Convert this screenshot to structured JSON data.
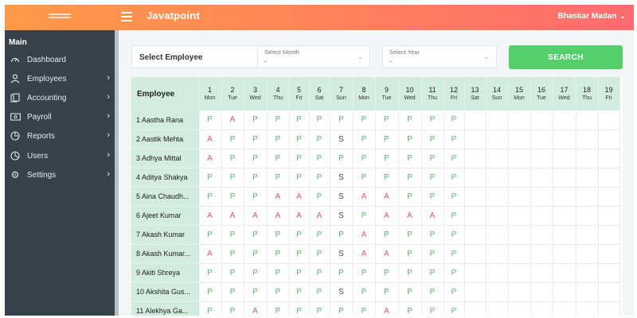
{
  "header": {
    "title": "Javatpoint",
    "user": "Bhaskar Madan"
  },
  "sidebar": {
    "section": "Main",
    "items": [
      {
        "label": "Dashboard",
        "icon": "dashboard-icon",
        "arrow": false
      },
      {
        "label": "Employees",
        "icon": "user-icon",
        "arrow": true
      },
      {
        "label": "Accounting",
        "icon": "accounting-icon",
        "arrow": true
      },
      {
        "label": "Payroll",
        "icon": "payroll-icon",
        "arrow": true
      },
      {
        "label": "Reports",
        "icon": "reports-icon",
        "arrow": true
      },
      {
        "label": "Users",
        "icon": "users-icon",
        "arrow": true
      },
      {
        "label": "Settings",
        "icon": "gear-icon",
        "arrow": true
      }
    ]
  },
  "filters": {
    "employee_label": "Select Employee",
    "month_caption": "Select Month",
    "month_value": "-",
    "year_caption": "Select Year",
    "year_value": "-",
    "search_label": "SEARCH"
  },
  "table": {
    "employee_header": "Employee",
    "days": [
      {
        "n": "1",
        "d": "Mon"
      },
      {
        "n": "2",
        "d": "Tue"
      },
      {
        "n": "3",
        "d": "Wed"
      },
      {
        "n": "4",
        "d": "Thu"
      },
      {
        "n": "5",
        "d": "Fri"
      },
      {
        "n": "6",
        "d": "Sat"
      },
      {
        "n": "7",
        "d": "Sun"
      },
      {
        "n": "8",
        "d": "Mon"
      },
      {
        "n": "9",
        "d": "Tue"
      },
      {
        "n": "10",
        "d": "Wed"
      },
      {
        "n": "11",
        "d": "Thu"
      },
      {
        "n": "12",
        "d": "Fri"
      },
      {
        "n": "13",
        "d": "Sat"
      },
      {
        "n": "14",
        "d": "Sun"
      },
      {
        "n": "15",
        "d": "Mon"
      },
      {
        "n": "16",
        "d": "Tue"
      },
      {
        "n": "17",
        "d": "Wed"
      },
      {
        "n": "18",
        "d": "Thu"
      },
      {
        "n": "19",
        "d": "Fri"
      }
    ],
    "rows": [
      {
        "name": "1 Aastha Rana",
        "marks": [
          "P",
          "A",
          "P",
          "P",
          "P",
          "P",
          "P",
          "P",
          "P",
          "P",
          "P",
          "P"
        ]
      },
      {
        "name": "2 Aastik Mehta",
        "marks": [
          "A",
          "P",
          "P",
          "P",
          "P",
          "P",
          "S",
          "P",
          "P",
          "P",
          "P",
          "P"
        ]
      },
      {
        "name": "3 Adhya Mittal",
        "marks": [
          "A",
          "P",
          "P",
          "P",
          "P",
          "P",
          "P",
          "P",
          "P",
          "P",
          "P",
          "P"
        ]
      },
      {
        "name": "4 Aditya Shakya",
        "marks": [
          "P",
          "P",
          "P",
          "P",
          "P",
          "P",
          "S",
          "P",
          "P",
          "P",
          "P",
          "P"
        ]
      },
      {
        "name": "5 Aina Chaudh...",
        "marks": [
          "P",
          "P",
          "P",
          "A",
          "A",
          "P",
          "S",
          "A",
          "A",
          "P",
          "P",
          "P"
        ]
      },
      {
        "name": "6 Ajeet Kumar",
        "marks": [
          "A",
          "A",
          "A",
          "A",
          "A",
          "A",
          "S",
          "P",
          "A",
          "A",
          "A",
          "P"
        ]
      },
      {
        "name": "7 Akash Kumar",
        "marks": [
          "P",
          "P",
          "P",
          "P",
          "P",
          "P",
          "P",
          "A",
          "P",
          "P",
          "P",
          "P"
        ]
      },
      {
        "name": "8 Akash Kumar...",
        "marks": [
          "A",
          "P",
          "P",
          "P",
          "P",
          "P",
          "S",
          "A",
          "A",
          "P",
          "P",
          "P"
        ]
      },
      {
        "name": "9 Akiti Shreya",
        "marks": [
          "P",
          "P",
          "P",
          "P",
          "P",
          "P",
          "P",
          "P",
          "P",
          "P",
          "P",
          "P"
        ]
      },
      {
        "name": "10 Akshita Gus...",
        "marks": [
          "P",
          "P",
          "P",
          "P",
          "P",
          "P",
          "S",
          "P",
          "P",
          "P",
          "P",
          "P"
        ]
      },
      {
        "name": "11 Alekhya Ga...",
        "marks": [
          "P",
          "P",
          "A",
          "P",
          "P",
          "P",
          "P",
          "P",
          "A",
          "P",
          "P",
          "P"
        ]
      }
    ]
  },
  "colors": {
    "present": "#58b86a",
    "absent": "#e8536a",
    "accent": "#55cf6a",
    "sidebar": "#36424a"
  }
}
